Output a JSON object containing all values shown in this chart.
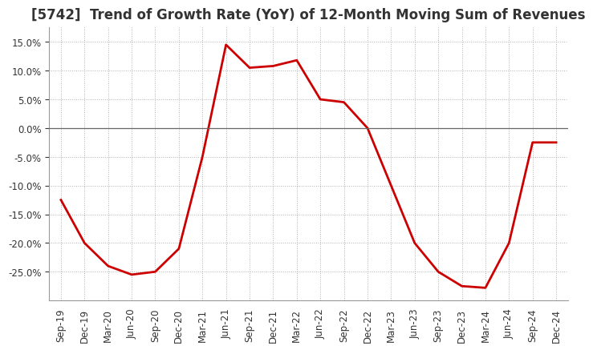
{
  "title": "[5742]  Trend of Growth Rate (YoY) of 12-Month Moving Sum of Revenues",
  "x_labels": [
    "Sep-19",
    "Dec-19",
    "Mar-20",
    "Jun-20",
    "Sep-20",
    "Dec-20",
    "Mar-21",
    "Jun-21",
    "Sep-21",
    "Dec-21",
    "Mar-22",
    "Jun-22",
    "Sep-22",
    "Dec-22",
    "Mar-23",
    "Jun-23",
    "Sep-23",
    "Dec-23",
    "Mar-24",
    "Jun-24",
    "Sep-24",
    "Dec-24"
  ],
  "y_values": [
    -12.5,
    -20.0,
    -24.0,
    -25.5,
    -25.0,
    -21.0,
    -5.0,
    14.5,
    10.5,
    10.8,
    11.8,
    5.0,
    4.5,
    0.0,
    -10.0,
    -20.0,
    -25.0,
    -27.5,
    -27.8,
    -20.0,
    -2.5,
    -2.5
  ],
  "line_color": "#cc0000",
  "line_width": 2.0,
  "background_color": "#ffffff",
  "plot_bg_color": "#ffffff",
  "grid_color": "#b0b0b0",
  "zero_line_color": "#666666",
  "ylim": [
    -30,
    17.5
  ],
  "yticks": [
    -25.0,
    -20.0,
    -15.0,
    -10.0,
    -5.0,
    0.0,
    5.0,
    10.0,
    15.0
  ],
  "title_fontsize": 12,
  "tick_fontsize": 8.5,
  "title_color": "#333333"
}
